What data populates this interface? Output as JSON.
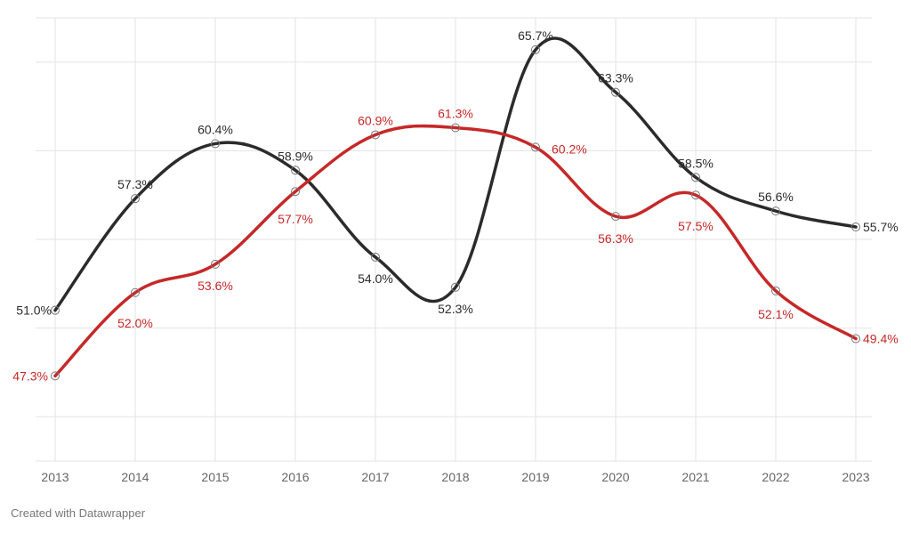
{
  "credit": "Created with Datawrapper",
  "chart_data": {
    "type": "line",
    "title": "",
    "xlabel": "",
    "ylabel": "",
    "x": [
      "2013",
      "2014",
      "2015",
      "2016",
      "2017",
      "2018",
      "2019",
      "2020",
      "2021",
      "2022",
      "2023"
    ],
    "ylim": [
      42.5,
      67.5
    ],
    "grid": true,
    "legend": "none",
    "series": [
      {
        "color": "#2b2b2b",
        "values": [
          51.0,
          57.3,
          60.4,
          58.9,
          54.0,
          52.3,
          65.7,
          63.3,
          58.5,
          56.6,
          55.7
        ],
        "labels": [
          "51.0%",
          "57.3%",
          "60.4%",
          "58.9%",
          "54.0%",
          "52.3%",
          "65.7%",
          "63.3%",
          "58.5%",
          "56.6%",
          "55.7%"
        ]
      },
      {
        "color": "#c62828",
        "values": [
          47.3,
          52.0,
          53.6,
          57.7,
          60.9,
          61.3,
          60.2,
          56.3,
          57.5,
          52.1,
          49.4
        ],
        "labels": [
          "47.3%",
          "52.0%",
          "53.6%",
          "57.7%",
          "60.9%",
          "61.3%",
          "60.2%",
          "56.3%",
          "57.5%",
          "52.1%",
          "49.4%"
        ]
      }
    ]
  }
}
